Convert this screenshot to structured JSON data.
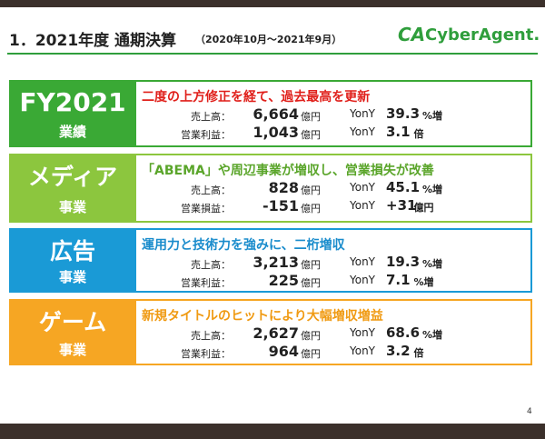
{
  "header": {
    "title": "1．2021年度 通期決算",
    "period": "（2020年10月～2021年9月）",
    "logo_mark": "CA",
    "logo": "CyberAgent."
  },
  "sections": [
    {
      "label": "FY2021",
      "sublabel": "業績",
      "color": "#3aa935",
      "headline_color": "#e0201b",
      "headline": "二度の上方修正を経て、過去最高を更新",
      "rows": [
        {
          "name": "売上高：",
          "value": "6,664",
          "unit": "億円",
          "yoy": "YonY",
          "change": "39.3",
          "change_unit": "%増"
        },
        {
          "name": "営業利益：",
          "value": "1,043",
          "unit": "億円",
          "yoy": "YonY",
          "change": "3.1",
          "change_unit": "倍"
        }
      ]
    },
    {
      "label": "メディア",
      "sublabel": "事業",
      "color": "#8cc63e",
      "headline_color": "#5aa52a",
      "headline": "「ABEMA」や周辺事業が増収し、営業損失が改善",
      "rows": [
        {
          "name": "売上高：",
          "value": "828",
          "unit": "億円",
          "yoy": "YonY",
          "change": "45.1",
          "change_unit": "%増"
        },
        {
          "name": "営業損益：",
          "value": "-151",
          "unit": "億円",
          "yoy": "YonY",
          "change": "+31",
          "change_unit": "億円"
        }
      ]
    },
    {
      "label": "広告",
      "sublabel": "事業",
      "color": "#1a9ad6",
      "headline_color": "#1a8ccc",
      "headline": "運用力と技術力を強みに、二桁増収",
      "rows": [
        {
          "name": "売上高：",
          "value": "3,213",
          "unit": "億円",
          "yoy": "YonY",
          "change": "19.3",
          "change_unit": "%増"
        },
        {
          "name": "営業利益：",
          "value": "225",
          "unit": "億円",
          "yoy": "YonY",
          "change": "7.1",
          "change_unit": "%増"
        }
      ]
    },
    {
      "label": "ゲーム",
      "sublabel": "事業",
      "color": "#f6a623",
      "headline_color": "#f09a12",
      "headline": "新規タイトルのヒットにより大幅増収増益",
      "rows": [
        {
          "name": "売上高：",
          "value": "2,627",
          "unit": "億円",
          "yoy": "YonY",
          "change": "68.6",
          "change_unit": "%増"
        },
        {
          "name": "営業利益：",
          "value": "964",
          "unit": "億円",
          "yoy": "YonY",
          "change": "3.2",
          "change_unit": "倍"
        }
      ]
    }
  ],
  "page_number": "4"
}
